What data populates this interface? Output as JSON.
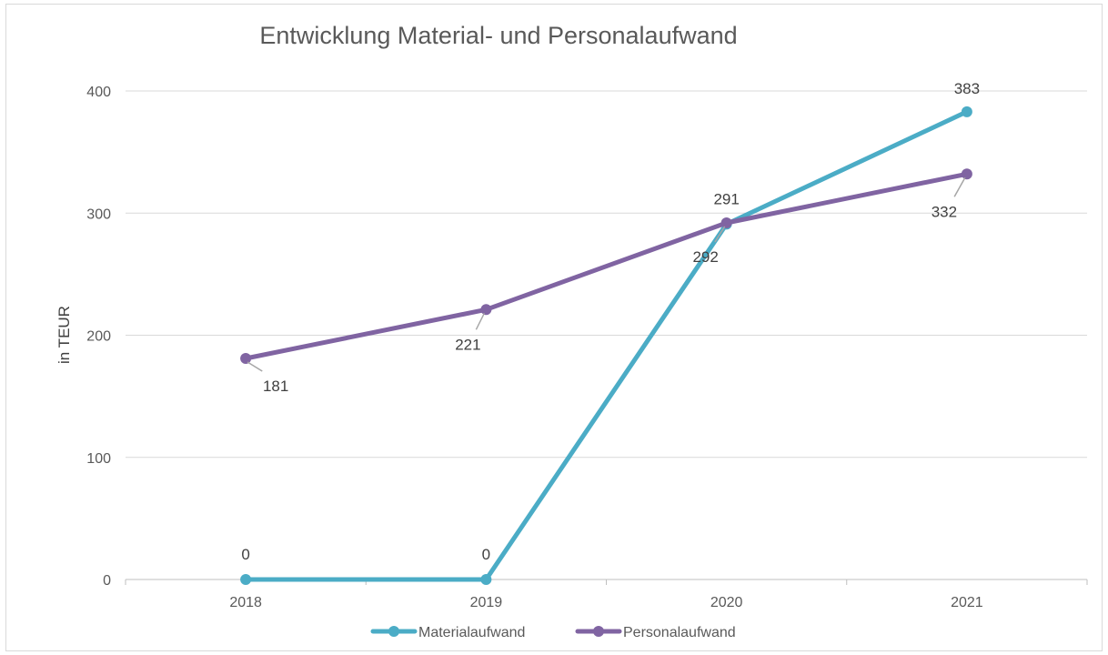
{
  "chart_data": {
    "type": "line",
    "title": "Entwicklung Material- und Personalaufwand",
    "ylabel": "in TEUR",
    "xlabel": "",
    "categories": [
      "2018",
      "2019",
      "2020",
      "2021"
    ],
    "ylim": [
      0,
      400
    ],
    "yticks": [
      0,
      100,
      200,
      300,
      400
    ],
    "grid": true,
    "legend_position": "bottom",
    "series": [
      {
        "name": "Materialaufwand",
        "color": "#4bacc6",
        "values": [
          0,
          0,
          291,
          383
        ]
      },
      {
        "name": "Personalaufwand",
        "color": "#8064a2",
        "values": [
          181,
          221,
          292,
          332
        ]
      }
    ]
  }
}
